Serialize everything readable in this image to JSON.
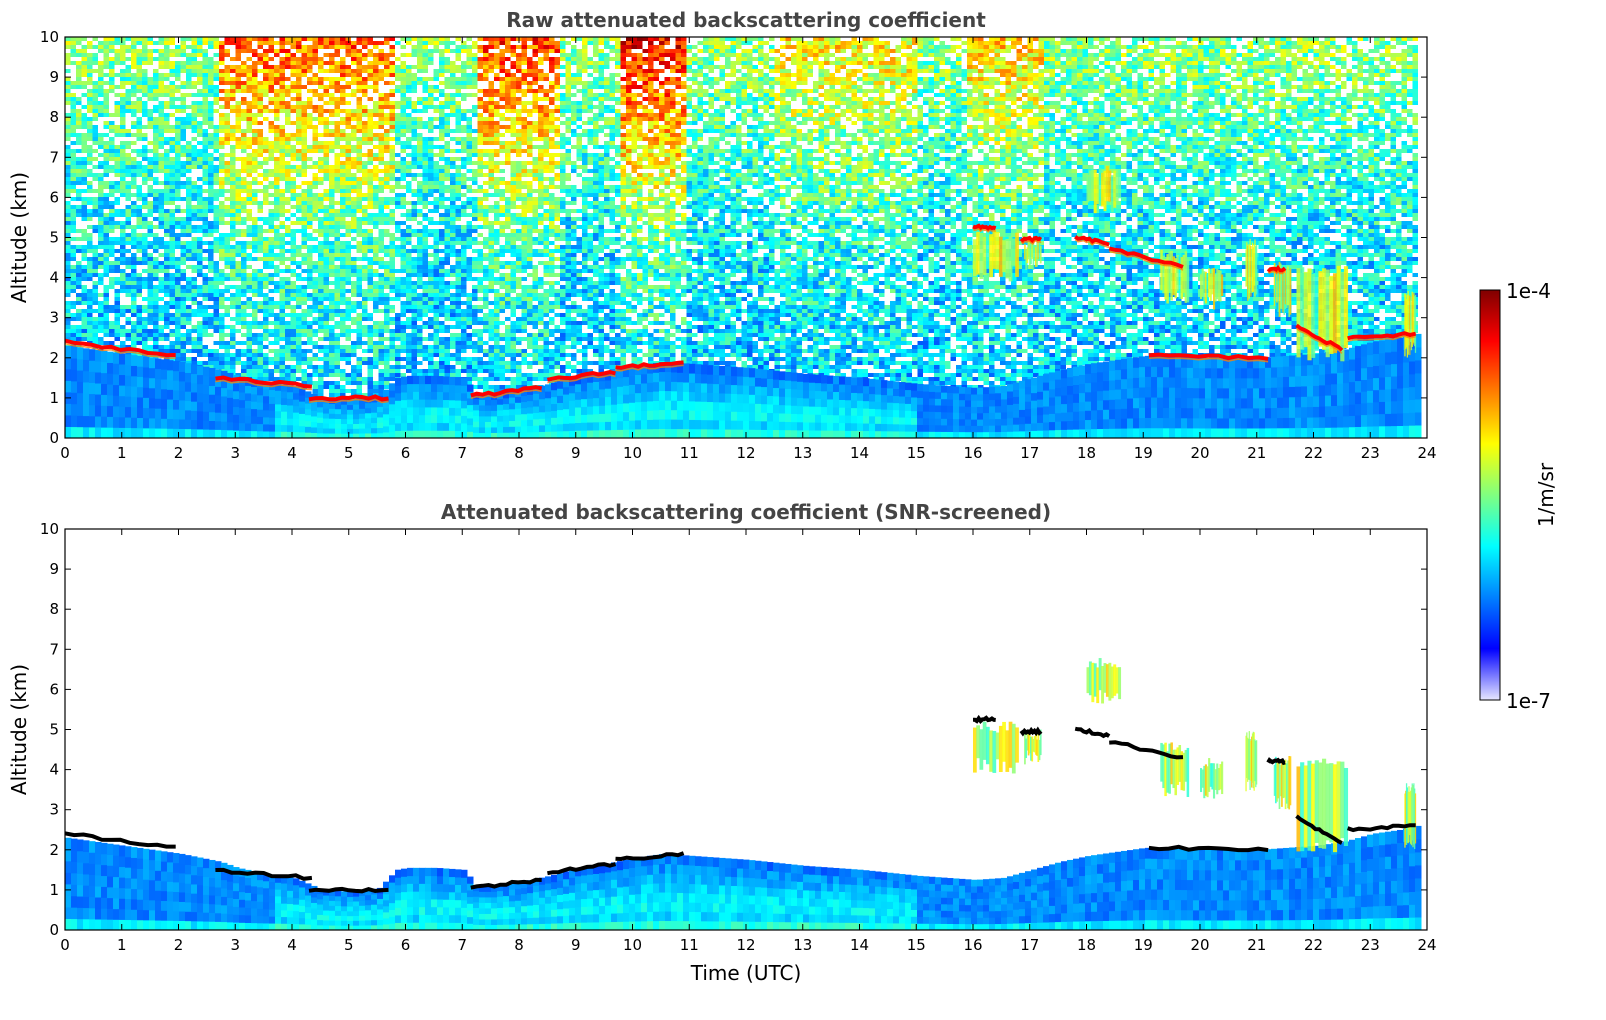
{
  "colors": {
    "colormap": [
      "#e6e6ff",
      "#0000ff",
      "#0080ff",
      "#00ffff",
      "#80ff80",
      "#ffff00",
      "#ff8000",
      "#ff0000",
      "#800000"
    ],
    "strong_layer": "#000000"
  },
  "colorbar": {
    "label": "1/m/sr",
    "max_label": "1e-4",
    "min_label": "1e-7",
    "range": [
      1e-07,
      0.0001
    ],
    "scale": "log"
  },
  "axes": {
    "xlabel": "Time (UTC)",
    "ylabel": "Altitude (km)",
    "xlim": [
      0,
      24
    ],
    "ylim": [
      0,
      10
    ],
    "xticks": [
      "0",
      "1",
      "2",
      "3",
      "4",
      "5",
      "6",
      "7",
      "8",
      "9",
      "10",
      "11",
      "12",
      "13",
      "14",
      "15",
      "16",
      "17",
      "18",
      "19",
      "20",
      "21",
      "22",
      "23",
      "24"
    ],
    "yticks": [
      "0",
      "1",
      "2",
      "3",
      "4",
      "5",
      "6",
      "7",
      "8",
      "9",
      "10"
    ]
  },
  "chart_data": [
    {
      "type": "heatmap",
      "title": "Raw attenuated backscattering coefficient",
      "xlabel": "",
      "ylabel": "Altitude (km)",
      "xlim": [
        0,
        24
      ],
      "ylim": [
        0,
        10
      ],
      "data_end_time": 23.8,
      "boundary_layer_top": {
        "time": [
          0,
          1,
          2,
          2.7,
          3,
          3.5,
          4,
          4.5,
          5,
          5.5,
          5.8,
          6,
          6.5,
          7,
          7.2,
          7.5,
          8,
          8.5,
          9,
          9.5,
          10,
          10.5,
          11,
          12,
          13,
          14,
          15,
          16,
          16.5,
          17,
          17.5,
          18,
          19,
          20,
          21,
          21.5,
          22,
          22.5,
          23,
          23.5,
          23.8
        ],
        "altitude": [
          2.3,
          2.1,
          1.9,
          1.7,
          1.55,
          1.4,
          1.3,
          1.0,
          0.95,
          1.05,
          1.5,
          1.55,
          1.55,
          1.5,
          1.1,
          1.1,
          1.2,
          1.35,
          1.55,
          1.65,
          1.8,
          1.9,
          1.85,
          1.75,
          1.6,
          1.5,
          1.35,
          1.25,
          1.3,
          1.5,
          1.7,
          1.85,
          2.05,
          2.0,
          2.0,
          2.05,
          2.1,
          2.2,
          2.4,
          2.5,
          2.6
        ]
      },
      "strong_layers": [
        {
          "t0": 0.0,
          "t1": 1.95,
          "altitude": [
            2.4,
            2.05
          ]
        },
        {
          "t0": 2.65,
          "t1": 4.35,
          "altitude": [
            1.5,
            1.3
          ]
        },
        {
          "t0": 4.3,
          "t1": 5.7,
          "altitude": [
            1.0,
            1.0
          ]
        },
        {
          "t0": 7.15,
          "t1": 8.4,
          "altitude": [
            1.05,
            1.25
          ]
        },
        {
          "t0": 8.5,
          "t1": 9.7,
          "altitude": [
            1.45,
            1.65
          ]
        },
        {
          "t0": 9.7,
          "t1": 10.9,
          "altitude": [
            1.75,
            1.9
          ]
        },
        {
          "t0": 16.0,
          "t1": 16.4,
          "altitude": [
            5.25,
            5.25
          ]
        },
        {
          "t0": 16.85,
          "t1": 17.2,
          "altitude": [
            4.95,
            4.95
          ]
        },
        {
          "t0": 17.8,
          "t1": 18.4,
          "altitude": [
            5.0,
            4.85
          ]
        },
        {
          "t0": 18.4,
          "t1": 19.7,
          "altitude": [
            4.7,
            4.3
          ]
        },
        {
          "t0": 19.1,
          "t1": 21.2,
          "altitude": [
            2.05,
            2.0
          ]
        },
        {
          "t0": 21.2,
          "t1": 21.5,
          "altitude": [
            4.2,
            4.2
          ]
        },
        {
          "t0": 21.7,
          "t1": 22.5,
          "altitude": [
            2.8,
            2.2
          ]
        },
        {
          "t0": 22.6,
          "t1": 23.8,
          "altitude": [
            2.5,
            2.6
          ]
        }
      ],
      "cirrus": [
        {
          "t0": 16.0,
          "t1": 16.8,
          "alt_top": 5.2,
          "alt_bottom": 3.9
        },
        {
          "t0": 16.9,
          "t1": 17.2,
          "alt_top": 5.0,
          "alt_bottom": 4.1
        },
        {
          "t0": 18.0,
          "t1": 18.6,
          "alt_top": 6.8,
          "alt_bottom": 5.6
        },
        {
          "t0": 19.3,
          "t1": 19.8,
          "alt_top": 4.7,
          "alt_bottom": 3.3
        },
        {
          "t0": 20.0,
          "t1": 20.4,
          "alt_top": 4.3,
          "alt_bottom": 3.2
        },
        {
          "t0": 20.8,
          "t1": 21.0,
          "alt_top": 5.0,
          "alt_bottom": 3.4
        },
        {
          "t0": 21.3,
          "t1": 21.6,
          "alt_top": 4.4,
          "alt_bottom": 3.0
        },
        {
          "t0": 21.7,
          "t1": 22.6,
          "alt_top": 4.3,
          "alt_bottom": 1.9
        },
        {
          "t0": 23.6,
          "t1": 23.8,
          "alt_top": 3.7,
          "alt_bottom": 2.0
        }
      ],
      "background_noise_bands": [
        {
          "t0": 2.7,
          "t1": 5.8,
          "level": 0.8
        },
        {
          "t0": 7.2,
          "t1": 8.7,
          "level": 0.85
        },
        {
          "t0": 9.7,
          "t1": 10.9,
          "level": 0.95
        },
        {
          "t0": 12.5,
          "t1": 15.0,
          "level": 0.55
        },
        {
          "t0": 15.8,
          "t1": 17.2,
          "level": 0.6
        }
      ]
    },
    {
      "type": "heatmap",
      "title": "Attenuated backscattering coefficient (SNR-screened)",
      "xlabel": "Time (UTC)",
      "ylabel": "Altitude (km)",
      "xlim": [
        0,
        24
      ],
      "ylim": [
        0,
        10
      ],
      "data_end_time": 23.8,
      "screening": "SNR"
    }
  ]
}
